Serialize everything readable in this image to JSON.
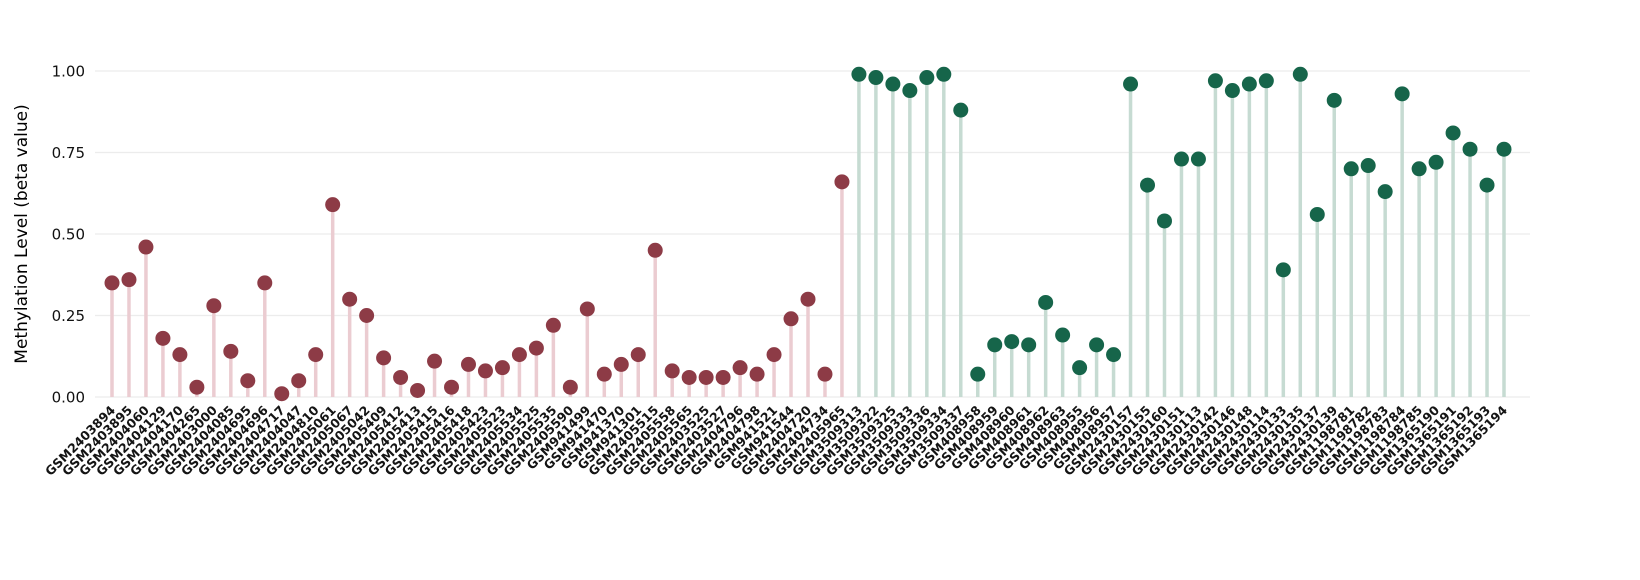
{
  "chart_data": {
    "type": "lollipop",
    "title": "",
    "xlabel": "",
    "ylabel": "Methylation Level (beta value)",
    "ylim": [
      0,
      1
    ],
    "yticks": [
      0,
      0.25,
      0.5,
      0.75,
      1
    ],
    "ytick_labels": [
      "0.00",
      "0.25",
      "0.50",
      "0.75",
      "1.00"
    ],
    "grid": "horizontal",
    "legend": "none",
    "background_color": "#ffffff",
    "grid_color": "#ececec",
    "groups": [
      {
        "name": "group-red",
        "dot_color": "#8d3b46",
        "stem_color": "#ebccd1",
        "labels": [
          "GSM2403894",
          "GSM2403895",
          "GSM2404060",
          "GSM2404129",
          "GSM2404170",
          "GSM2404265",
          "GSM2403000",
          "GSM2404085",
          "GSM2404695",
          "GSM2404696",
          "GSM2404717",
          "GSM2404047",
          "GSM2404810",
          "GSM2405061",
          "GSM2405067",
          "GSM2405042",
          "GSM2405409",
          "GSM2405412",
          "GSM2405413",
          "GSM2405415",
          "GSM2405416",
          "GSM2405418",
          "GSM2405423",
          "GSM2405523",
          "GSM2405534",
          "GSM2405525",
          "GSM2405535",
          "GSM2405590",
          "GSM941499",
          "GSM941470",
          "GSM941370",
          "GSM941301",
          "GSM2405515",
          "GSM2405558",
          "GSM2405565",
          "GSM2403525",
          "GSM2403527",
          "GSM2404796",
          "GSM2404798",
          "GSM941521",
          "GSM941544",
          "GSM2404720",
          "GSM2404734",
          "GSM2405965"
        ],
        "values": [
          0.35,
          0.36,
          0.46,
          0.18,
          0.13,
          0.03,
          0.28,
          0.14,
          0.05,
          0.35,
          0.01,
          0.05,
          0.13,
          0.59,
          0.3,
          0.25,
          0.12,
          0.06,
          0.02,
          0.11,
          0.03,
          0.1,
          0.08,
          0.09,
          0.13,
          0.15,
          0.22,
          0.03,
          0.27,
          0.07,
          0.1,
          0.13,
          0.45,
          0.08,
          0.06,
          0.06,
          0.06,
          0.09,
          0.07,
          0.13,
          0.24,
          0.3,
          0.07,
          0.66
        ]
      },
      {
        "name": "group-green",
        "dot_color": "#16654a",
        "stem_color": "#c6dbd2",
        "labels": [
          "GSM3509313",
          "GSM3509322",
          "GSM3509325",
          "GSM3509333",
          "GSM3509336",
          "GSM3509334",
          "GSM3509337",
          "GSM408958",
          "GSM408959",
          "GSM408960",
          "GSM408961",
          "GSM408962",
          "GSM408963",
          "GSM408955",
          "GSM408956",
          "GSM408957",
          "GSM2430157",
          "GSM2430155",
          "GSM2430160",
          "GSM2430151",
          "GSM2430113",
          "GSM2430142",
          "GSM2430146",
          "GSM2430148",
          "GSM2430114",
          "GSM2430133",
          "GSM2430135",
          "GSM2430137",
          "GSM2430139",
          "GSM1198781",
          "GSM1198782",
          "GSM1198783",
          "GSM1198784",
          "GSM1198785",
          "GSM1365190",
          "GSM1365191",
          "GSM1365192",
          "GSM1365193",
          "GSM1365194"
        ],
        "values": [
          0.99,
          0.98,
          0.96,
          0.94,
          0.98,
          0.99,
          0.88,
          0.07,
          0.16,
          0.17,
          0.16,
          0.29,
          0.19,
          0.09,
          0.16,
          0.13,
          0.96,
          0.65,
          0.54,
          0.73,
          0.73,
          0.97,
          0.94,
          0.96,
          0.97,
          0.39,
          0.99,
          0.56,
          0.91,
          0.7,
          0.71,
          0.63,
          0.93,
          0.7,
          0.72,
          0.81,
          0.76,
          0.65,
          0.76
        ]
      }
    ]
  }
}
